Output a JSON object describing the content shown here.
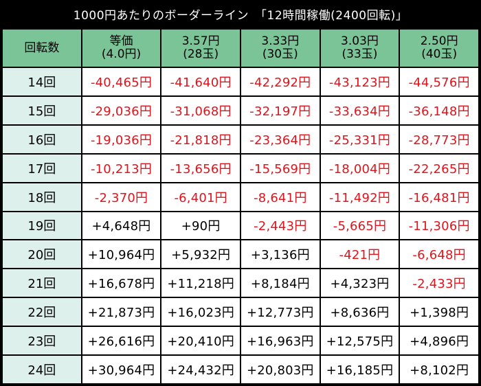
{
  "title": "1000円あたりのボーダーライン　「12時間稼働(2400回転)」",
  "colors": {
    "header_bg": "#7ac497",
    "row_head_bg": "#def0eb",
    "negative": "#e0141c",
    "positive": "#000000",
    "background": "#000000"
  },
  "header": {
    "first": "回転数",
    "columns": [
      {
        "line1": "等価",
        "line2": "(4.0円)"
      },
      {
        "line1": "3.57円",
        "line2": "(28玉)"
      },
      {
        "line1": "3.33円",
        "line2": "(30玉)"
      },
      {
        "line1": "3.03円",
        "line2": "(33玉)"
      },
      {
        "line1": "2.50円",
        "line2": "(40玉)"
      }
    ]
  },
  "rows": [
    {
      "label": "14回",
      "values": [
        "-40,465円",
        "-41,640円",
        "-42,292円",
        "-43,123円",
        "-44,576円"
      ]
    },
    {
      "label": "15回",
      "values": [
        "-29,036円",
        "-31,068円",
        "-32,197円",
        "-33,634円",
        "-36,148円"
      ]
    },
    {
      "label": "16回",
      "values": [
        "-19,036円",
        "-21,818円",
        "-23,364円",
        "-25,331円",
        "-28,773円"
      ]
    },
    {
      "label": "17回",
      "values": [
        "-10,213円",
        "-13,656円",
        "-15,569円",
        "-18,004円",
        "-22,265円"
      ]
    },
    {
      "label": "18回",
      "values": [
        "-2,370円",
        "-6,401円",
        "-8,641円",
        "-11,492円",
        "-16,481円"
      ]
    },
    {
      "label": "19回",
      "values": [
        "+4,648円",
        "+90円",
        "-2,443円",
        "-5,665円",
        "-11,306円"
      ]
    },
    {
      "label": "20回",
      "values": [
        "+10,964円",
        "+5,932円",
        "+3,136円",
        "-421円",
        "-6,648円"
      ]
    },
    {
      "label": "21回",
      "values": [
        "+16,678円",
        "+11,218円",
        "+8,184円",
        "+4,323円",
        "-2,433円"
      ]
    },
    {
      "label": "22回",
      "values": [
        "+21,873円",
        "+16,023円",
        "+12,773円",
        "+8,636円",
        "+1,398円"
      ]
    },
    {
      "label": "23回",
      "values": [
        "+26,616円",
        "+20,410円",
        "+16,963円",
        "+12,575円",
        "+4,896円"
      ]
    },
    {
      "label": "24回",
      "values": [
        "+30,964円",
        "+24,432円",
        "+20,803円",
        "+16,185円",
        "+8,102円"
      ]
    }
  ]
}
